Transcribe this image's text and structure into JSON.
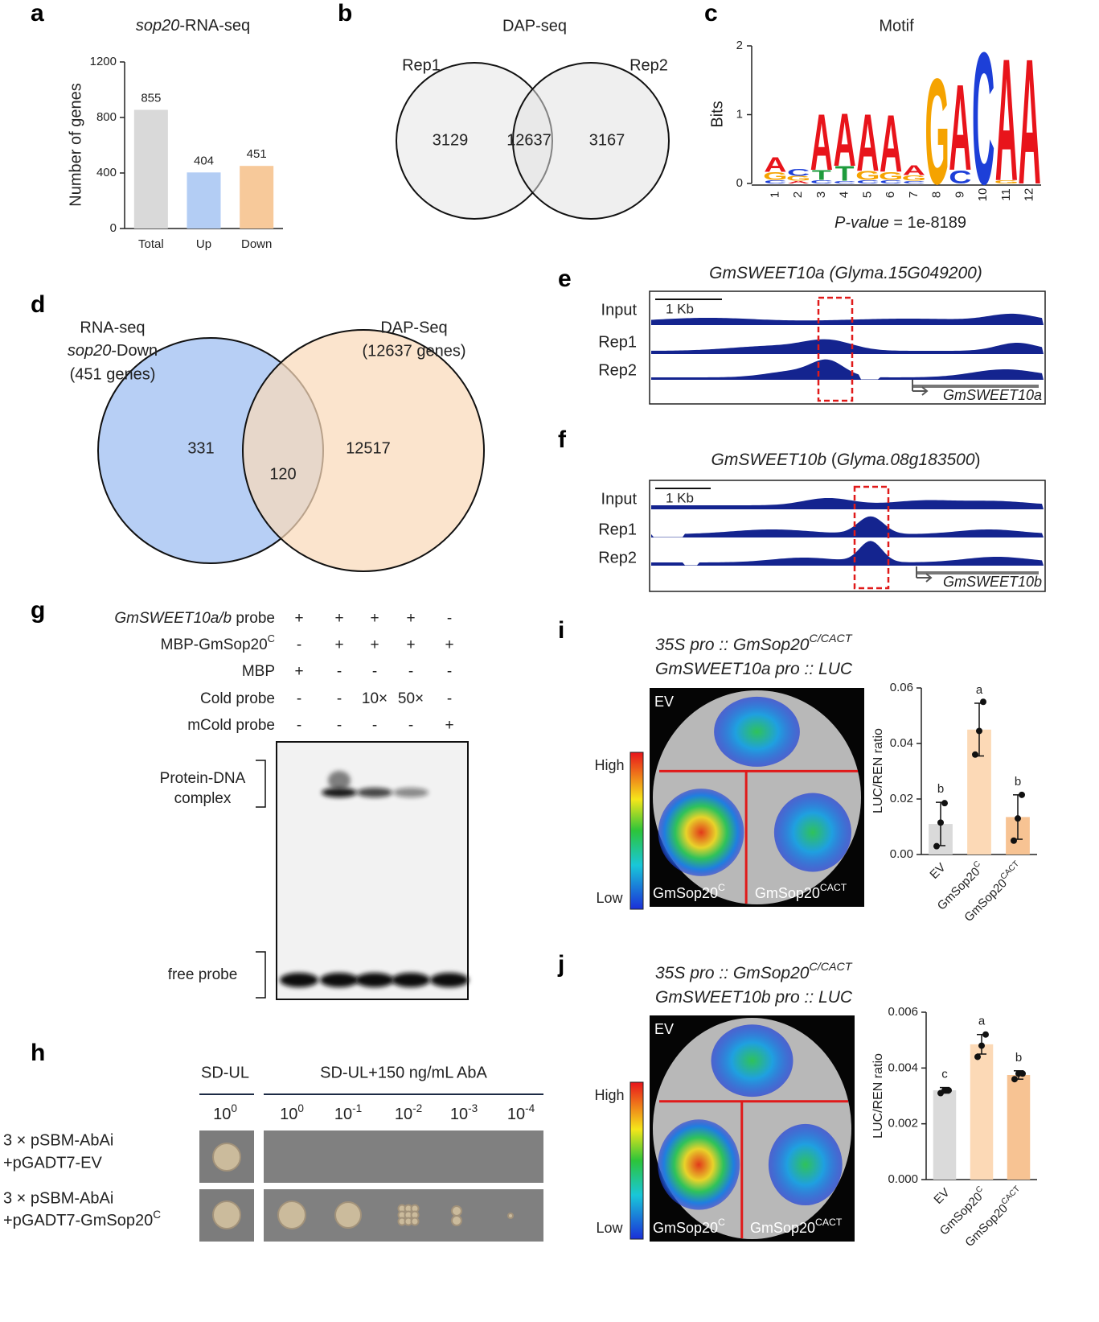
{
  "chart_data": [
    {
      "type": "bar",
      "label": "a",
      "title": [
        {
          "text": "sop20",
          "style": "italic"
        },
        "-RNA-seq"
      ],
      "y_label": "Number of genes",
      "categories": [
        "Total",
        "Up",
        "Down"
      ],
      "values": [
        855,
        404,
        451
      ],
      "colors": [
        "#d9d9d9",
        "#b3cdf4",
        "#f7c99a"
      ],
      "ylim": [
        0,
        1200
      ],
      "yticks": [
        0,
        400,
        800,
        1200
      ]
    },
    {
      "type": "bar_dot",
      "y_label": "LUC/REN ratio",
      "categories": [
        "EV",
        [
          "GmSop20",
          {
            "text": "C",
            "style": "sup"
          }
        ],
        [
          "GmSop20",
          {
            "text": "CACT",
            "style": "sup"
          }
        ]
      ],
      "values": [
        0.011,
        0.045,
        0.0135
      ],
      "errors": [
        0.0078,
        0.0095,
        0.008
      ],
      "points": [
        [
          0.003,
          0.0115,
          0.0185
        ],
        [
          0.036,
          0.0445,
          0.055
        ],
        [
          0.005,
          0.013,
          0.0215
        ]
      ],
      "significance": [
        "b",
        "a",
        "b"
      ],
      "colors": [
        "#dadada",
        "#fcd9b6",
        "#f7c393"
      ],
      "point_color": "#111111",
      "ylim": [
        0,
        0.06
      ],
      "yticks": [
        {
          "value": 0,
          "label": "0.00"
        },
        {
          "value": 0.02,
          "label": "0.02"
        },
        {
          "value": 0.04,
          "label": "0.04"
        },
        {
          "value": 0.06,
          "label": "0.06"
        }
      ]
    },
    {
      "type": "bar_dot",
      "y_label": "LUC/REN ratio",
      "categories": [
        "EV",
        [
          "GmSop20",
          {
            "text": "C",
            "style": "sup"
          }
        ],
        [
          "GmSop20",
          {
            "text": "CACT",
            "style": "sup"
          }
        ]
      ],
      "values": [
        0.0032,
        0.00485,
        0.00375
      ],
      "errors": [
        0.0001,
        0.00035,
        0.00015
      ],
      "points": [
        [
          0.0031,
          0.0032,
          0.0032
        ],
        [
          0.0044,
          0.0048,
          0.0052
        ],
        [
          0.0036,
          0.0038,
          0.0038
        ]
      ],
      "significance": [
        "c",
        "a",
        "b"
      ],
      "colors": [
        "#dadada",
        "#fcd9b6",
        "#f7c393"
      ],
      "point_color": "#111111",
      "ylim": [
        0,
        0.006
      ],
      "yticks": [
        {
          "value": 0,
          "label": "0.000"
        },
        {
          "value": 0.002,
          "label": "0.002"
        },
        {
          "value": 0.004,
          "label": "0.004"
        },
        {
          "value": 0.006,
          "label": "0.006"
        }
      ]
    }
  ],
  "panel_b": {
    "label": "b",
    "title": "DAP-seq",
    "sets": [
      "Rep1",
      "Rep2"
    ],
    "counts": [
      3129,
      12637,
      3167
    ]
  },
  "panel_c": {
    "label": "c",
    "title": "Motif",
    "y_label": "Bits",
    "ylim": [
      0,
      2
    ],
    "yticks": [
      0,
      1,
      2
    ],
    "positions": [
      1,
      2,
      3,
      4,
      5,
      6,
      7,
      8,
      9,
      10,
      11,
      12
    ],
    "letter_colors": {
      "A": "#e8141b",
      "C": "#1d3fd8",
      "G": "#f5a300",
      "T": "#1e9b3c"
    },
    "columns": [
      [
        [
          "C",
          0.05
        ],
        [
          "G",
          0.12
        ],
        [
          "A",
          0.22
        ]
      ],
      [
        [
          "A",
          0.04
        ],
        [
          "G",
          0.07
        ],
        [
          "C",
          0.1
        ]
      ],
      [
        [
          "C",
          0.05
        ],
        [
          "T",
          0.15
        ],
        [
          "A",
          0.85
        ]
      ],
      [
        [
          "C",
          0.04
        ],
        [
          "T",
          0.22
        ],
        [
          "A",
          0.8
        ]
      ],
      [
        [
          "C",
          0.05
        ],
        [
          "G",
          0.13
        ],
        [
          "A",
          0.86
        ]
      ],
      [
        [
          "C",
          0.05
        ],
        [
          "G",
          0.12
        ],
        [
          "A",
          0.86
        ]
      ],
      [
        [
          "C",
          0.04
        ],
        [
          "G",
          0.08
        ],
        [
          "A",
          0.15
        ]
      ],
      [
        [
          "G",
          1.6
        ]
      ],
      [
        [
          "C",
          0.2
        ],
        [
          "A",
          1.3
        ]
      ],
      [
        [
          "C",
          2.0
        ]
      ],
      [
        [
          "G",
          0.05
        ],
        [
          "A",
          1.85
        ]
      ],
      [
        [
          "A",
          1.9
        ]
      ]
    ],
    "p_value": [
      {
        "text": "P-value",
        "style": "italic"
      },
      " = 1e-8189"
    ]
  },
  "panel_d": {
    "label": "d",
    "left_title": [
      "RNA-seq",
      [
        {
          "text": "sop20",
          "style": "italic"
        },
        "-Down"
      ],
      "(451 genes)"
    ],
    "right_title": [
      "DAP-Seq",
      "(12637 genes)"
    ],
    "counts": [
      331,
      120,
      12517
    ]
  },
  "panel_e": {
    "label": "e",
    "title": [
      {
        "text": "GmSWEET10a (Glyma.15G049200)",
        "style": "italic"
      }
    ],
    "scale": "1 Kb",
    "tracks": [
      "Input",
      "Rep1",
      "Rep2"
    ],
    "gene": "GmSWEET10a"
  },
  "panel_f": {
    "label": "f",
    "title": [
      {
        "text": "GmSWEET10b",
        "style": "italic"
      },
      " (",
      {
        "text": "Glyma.08g183500",
        "style": "italic"
      },
      ")"
    ],
    "scale": "1 Kb",
    "tracks": [
      "Input",
      "Rep1",
      "Rep2"
    ],
    "gene": "GmSWEET10b"
  },
  "panel_g": {
    "label": "g",
    "rows": [
      {
        "name": [
          {
            "text": "GmSWEET10a/b",
            "style": "italic"
          },
          " probe"
        ],
        "lanes": [
          "+",
          "+",
          "+",
          "+",
          "-"
        ]
      },
      {
        "name": [
          "MBP-GmSop20",
          {
            "text": "C",
            "style": "sup"
          }
        ],
        "lanes": [
          "-",
          "+",
          "+",
          "+",
          "+"
        ]
      },
      {
        "name": "MBP",
        "lanes": [
          "+",
          "-",
          "-",
          "-",
          "-"
        ]
      },
      {
        "name": "Cold probe",
        "lanes": [
          "-",
          "-",
          "10×",
          "50×",
          "-"
        ]
      },
      {
        "name": "mCold probe",
        "lanes": [
          "-",
          "-",
          "-",
          "-",
          "+"
        ]
      }
    ],
    "band_labels": [
      [
        "Protein-DNA",
        "complex"
      ],
      [
        "free probe"
      ]
    ]
  },
  "panel_h": {
    "label": "h",
    "media": [
      "SD-UL",
      "SD-UL+150 ng/mL AbA"
    ],
    "dilutions": [
      [
        "10",
        {
          "text": "0",
          "style": "sup"
        }
      ],
      [
        "10",
        {
          "text": "0",
          "style": "sup"
        }
      ],
      [
        "10",
        {
          "text": "-1",
          "style": "sup"
        }
      ],
      [
        "10",
        {
          "text": "-2",
          "style": "sup"
        }
      ],
      [
        "10",
        {
          "text": "-3",
          "style": "sup"
        }
      ],
      [
        "10",
        {
          "text": "-4",
          "style": "sup"
        }
      ]
    ],
    "strains": [
      [
        "3 × pSBM-AbAi",
        "+pGADT7-EV"
      ],
      [
        "3 × pSBM-AbAi",
        [
          "+pGADT7-GmSop20",
          {
            "text": "C",
            "style": "sup"
          }
        ]
      ]
    ]
  },
  "panel_i": {
    "label": "i",
    "construct": [
      [
        {
          "text": "35S pro :: GmSop20",
          "style": "italic"
        },
        {
          "text": "C/CACT",
          "style": "sup-italic"
        }
      ],
      [
        {
          "text": "GmSWEET10a pro :: LUC",
          "style": "italic"
        }
      ]
    ],
    "scale": [
      "High",
      "Low"
    ],
    "zones": [
      "EV",
      [
        "GmSop20",
        {
          "text": "C",
          "style": "sup"
        }
      ],
      [
        "GmSop20",
        {
          "text": "CACT",
          "style": "sup"
        }
      ]
    ]
  },
  "panel_j": {
    "label": "j",
    "construct": [
      [
        {
          "text": "35S pro :: GmSop20",
          "style": "italic"
        },
        {
          "text": "C/CACT",
          "style": "sup-italic"
        }
      ],
      [
        {
          "text": "GmSWEET10b pro :: LUC",
          "style": "italic"
        }
      ]
    ],
    "scale": [
      "High",
      "Low"
    ],
    "zones": [
      "EV",
      [
        "GmSop20",
        {
          "text": "C",
          "style": "sup"
        }
      ],
      [
        "GmSop20",
        {
          "text": "CACT",
          "style": "sup"
        }
      ]
    ]
  }
}
